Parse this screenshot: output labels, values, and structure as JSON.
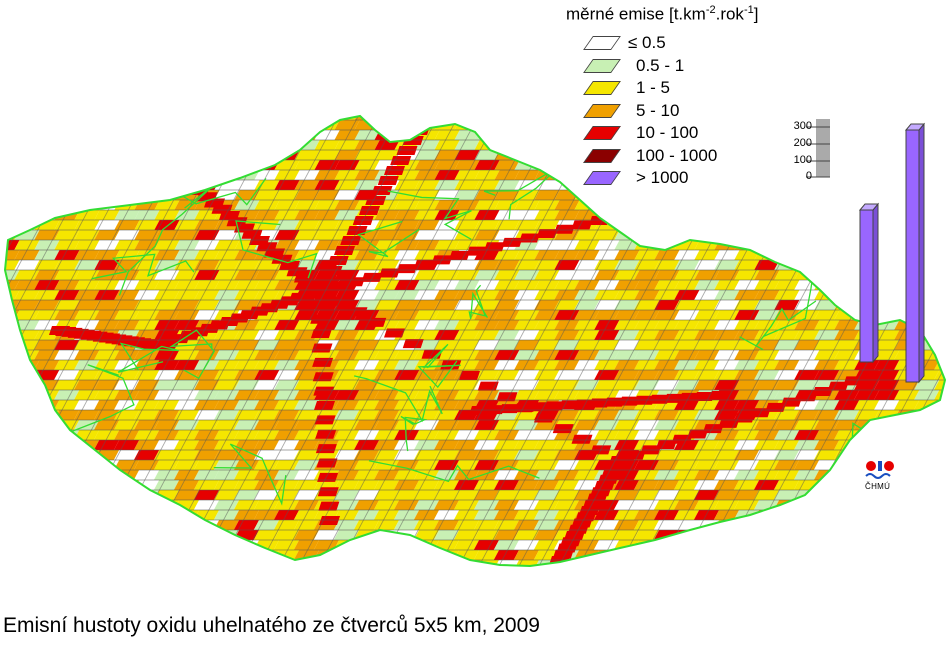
{
  "legend": {
    "title_main": "měrné emise [t.km",
    "title_sup1": "-2",
    "title_mid": ".rok",
    "title_sup2": "-1",
    "title_end": "]",
    "classes": [
      {
        "label": "≤ 0.5",
        "color": "#ffffff"
      },
      {
        "label": "0.5 - 1",
        "color": "#c8f0b4"
      },
      {
        "label": "1 - 5",
        "color": "#f5e600"
      },
      {
        "label": "5 - 10",
        "color": "#f0a000"
      },
      {
        "label": "10 - 100",
        "color": "#e60000"
      },
      {
        "label": "100 - 1000",
        "color": "#8b0000"
      },
      {
        "label": "> 1000",
        "color": "#9966ff"
      }
    ]
  },
  "scale": {
    "ticks": [
      "300",
      "200",
      "100",
      "0"
    ]
  },
  "logo": {
    "text": "ČHMÚ"
  },
  "caption": "Emisní hustoty oxidu uhelnatého ze čtverců 5x5 km, 2009",
  "colors": {
    "border": "#33dd33",
    "grid_line": "#555555",
    "bar": "#9966ff",
    "scale_bar": "#aaaaaa"
  }
}
